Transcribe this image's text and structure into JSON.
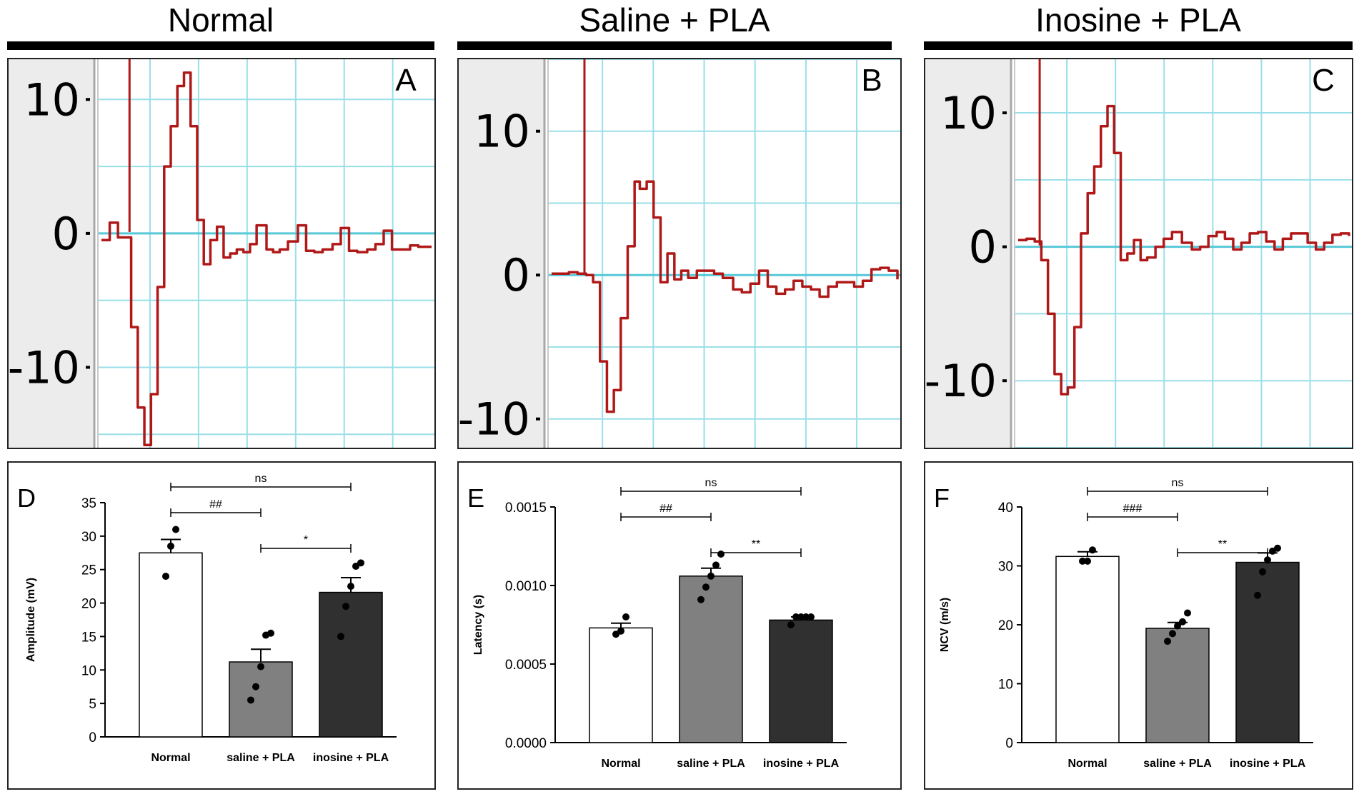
{
  "columns": [
    {
      "title": "Normal"
    },
    {
      "title": "Saline + PLA"
    },
    {
      "title": "Inosine + PLA"
    }
  ],
  "colors": {
    "trace": "#b01818",
    "baseline": "#56c8d8",
    "grid": "#9adfe8",
    "trace_bg_left": "#ececec",
    "bar_normal": "#ffffff",
    "bar_saline": "#808080",
    "bar_inosine": "#303030"
  },
  "chart_data": [
    {
      "panel": "A",
      "type": "line",
      "title": "Normal",
      "y_ticks": [
        "10",
        "0",
        "-10"
      ],
      "y_tick_values": [
        10,
        0,
        -10
      ],
      "ylim": [
        -16,
        13
      ],
      "x": [
        0,
        0.5,
        1,
        1.3,
        1.8,
        2.2,
        2.6,
        3.0,
        3.4,
        3.8,
        4.2,
        4.6,
        5.0,
        5.4,
        5.8,
        6.2,
        6.6,
        7.0,
        7.4,
        7.8,
        8.2,
        8.6,
        9.0,
        9.4,
        10.0,
        10.4,
        10.8,
        11.3,
        11.9,
        12.4,
        12.9,
        13.4,
        14.0,
        14.5,
        15.0,
        15.5,
        16.1,
        16.6,
        17.1,
        17.6,
        18.2,
        18.7,
        19.2,
        19.6,
        20.0
      ],
      "y": [
        -0.5,
        0.8,
        -0.3,
        -0.3,
        -7,
        -13,
        -15.8,
        -12,
        -4,
        5,
        8,
        11,
        12,
        8,
        1,
        -2.3,
        -0.5,
        0.5,
        -1.8,
        -1.5,
        -1.2,
        -1.4,
        -0.8,
        0.6,
        -1.2,
        -1.4,
        -1.2,
        -0.6,
        0.6,
        -1.3,
        -1.4,
        -1.2,
        -0.8,
        0.4,
        -1.3,
        -1.4,
        -1.2,
        -0.8,
        0.2,
        -1.2,
        -1.2,
        -0.9,
        -1.0,
        -1.0,
        -1.0
      ],
      "stimulus_x": 1.7
    },
    {
      "panel": "B",
      "type": "line",
      "title": "Saline + PLA",
      "y_ticks": [
        "10",
        "0",
        "-10"
      ],
      "y_tick_values": [
        10,
        0,
        -10
      ],
      "ylim": [
        -12,
        15
      ],
      "x": [
        0,
        0.5,
        1,
        1.5,
        2.0,
        2.4,
        2.8,
        3.2,
        3.6,
        4.0,
        4.4,
        4.8,
        5.1,
        5.5,
        5.9,
        6.3,
        6.7,
        7.1,
        7.5,
        7.9,
        8.4,
        8.9,
        9.4,
        9.9,
        10.5,
        11.0,
        11.5,
        12.0,
        12.5,
        13.0,
        13.5,
        14.0,
        14.5,
        15.0,
        15.5,
        16.0,
        16.5,
        17.0,
        17.5,
        18.0,
        18.5,
        19.0,
        19.5,
        20.0
      ],
      "y": [
        0.1,
        0.1,
        0.2,
        0.1,
        0.0,
        -0.5,
        -6,
        -9.5,
        -8,
        -3,
        2,
        6.5,
        6.0,
        6.5,
        4,
        -0.5,
        1.5,
        -0.3,
        0.3,
        -0.2,
        0.3,
        0.3,
        0.1,
        -0.2,
        -1.0,
        -1.2,
        -0.6,
        0.3,
        -0.8,
        -1.3,
        -1.0,
        -0.4,
        -0.8,
        -1.0,
        -1.5,
        -0.8,
        -0.5,
        -0.5,
        -0.8,
        -0.4,
        0.4,
        0.5,
        0.3,
        -0.3
      ],
      "stimulus_x": 1.9
    },
    {
      "panel": "C",
      "type": "line",
      "title": "Inosine + PLA",
      "y_ticks": [
        "10",
        "0",
        "-10"
      ],
      "y_tick_values": [
        10,
        0,
        -10
      ],
      "ylim": [
        -15,
        14
      ],
      "x": [
        0,
        0.5,
        1,
        1.4,
        1.8,
        2.2,
        2.6,
        3.0,
        3.4,
        3.8,
        4.2,
        4.6,
        5.0,
        5.4,
        5.8,
        6.2,
        6.6,
        7.0,
        7.4,
        7.8,
        8.3,
        8.8,
        9.3,
        9.9,
        10.5,
        11.0,
        11.5,
        12.0,
        12.5,
        13.0,
        13.5,
        14.0,
        14.5,
        15.0,
        15.5,
        16.0,
        16.5,
        17.0,
        17.5,
        18.0,
        18.5,
        19.0,
        19.5,
        20.0
      ],
      "y": [
        0.5,
        0.6,
        0.4,
        -1,
        -5,
        -9.5,
        -11,
        -10.5,
        -6,
        1,
        4,
        6,
        9,
        10.5,
        7,
        -1,
        -0.5,
        0.5,
        -1,
        -0.8,
        0.0,
        0.6,
        1.1,
        0.3,
        -0.2,
        0.0,
        0.8,
        1.1,
        0.6,
        -0.2,
        0.3,
        1.0,
        1.1,
        0.4,
        -0.2,
        0.6,
        1.0,
        1.0,
        0.3,
        -0.2,
        0.3,
        0.9,
        1.0,
        0.8
      ],
      "stimulus_x": 1.3
    },
    {
      "panel": "D",
      "type": "bar",
      "ylabel": "Amplitude (mV)",
      "categories": [
        "Normal",
        "saline + PLA",
        "inosine + PLA"
      ],
      "values": [
        27.5,
        11.2,
        21.6
      ],
      "errors": [
        2.0,
        1.9,
        2.2
      ],
      "points": [
        [
          24,
          28.5,
          31
        ],
        [
          5.5,
          7.5,
          10.5,
          15.2,
          15.5
        ],
        [
          15,
          19.5,
          22.5,
          25.5,
          26
        ]
      ],
      "ylim": [
        0,
        35
      ],
      "y_ticks": [
        0,
        5,
        10,
        15,
        20,
        25,
        30,
        35
      ],
      "y_tick_labels": [
        "0",
        "5",
        "10",
        "15",
        "20",
        "25",
        "30",
        "35"
      ],
      "significance": [
        {
          "from": 0,
          "to": 2,
          "label": "ns",
          "level": 3
        },
        {
          "from": 0,
          "to": 1,
          "label": "##",
          "level": 1
        },
        {
          "from": 1,
          "to": 2,
          "label": "*",
          "level": 0
        }
      ]
    },
    {
      "panel": "E",
      "type": "bar",
      "ylabel": "Latency (s)",
      "categories": [
        "Normal",
        "saline + PLA",
        "inosine + PLA"
      ],
      "values": [
        0.00073,
        0.00106,
        0.00078
      ],
      "errors": [
        3e-05,
        5e-05,
        2e-05
      ],
      "points": [
        [
          0.00069,
          0.00071,
          0.0008
        ],
        [
          0.00091,
          0.00099,
          0.00106,
          0.00113,
          0.0012
        ],
        [
          0.00075,
          0.0008,
          0.0008,
          0.0008,
          0.0008
        ]
      ],
      "ylim": [
        0,
        0.0015
      ],
      "y_ticks": [
        0,
        0.0005,
        0.001,
        0.0015
      ],
      "y_tick_labels": [
        "0.0000",
        "0.0005",
        "0.0010",
        "0.0015"
      ],
      "significance": [
        {
          "from": 0,
          "to": 2,
          "label": "ns",
          "level": 3
        },
        {
          "from": 0,
          "to": 1,
          "label": "##",
          "level": 1
        },
        {
          "from": 1,
          "to": 2,
          "label": "**",
          "level": 0
        }
      ]
    },
    {
      "panel": "F",
      "type": "bar",
      "ylabel": "NCV (m/s)",
      "categories": [
        "Normal",
        "saline + PLA",
        "inosine + PLA"
      ],
      "values": [
        31.6,
        19.4,
        30.6
      ],
      "errors": [
        0.8,
        1.0,
        1.6
      ],
      "points": [
        [
          30.8,
          30.8,
          32.7
        ],
        [
          17.2,
          18.5,
          19.8,
          20.5,
          22.0
        ],
        [
          25.0,
          29.0,
          31.0,
          32.5,
          33.0
        ]
      ],
      "ylim": [
        0,
        40
      ],
      "y_ticks": [
        0,
        10,
        20,
        30,
        40
      ],
      "y_tick_labels": [
        "0",
        "10",
        "20",
        "30",
        "40"
      ],
      "significance": [
        {
          "from": 0,
          "to": 2,
          "label": "ns",
          "level": 3
        },
        {
          "from": 0,
          "to": 1,
          "label": "###",
          "level": 1
        },
        {
          "from": 1,
          "to": 2,
          "label": "**",
          "level": 0
        }
      ]
    }
  ]
}
